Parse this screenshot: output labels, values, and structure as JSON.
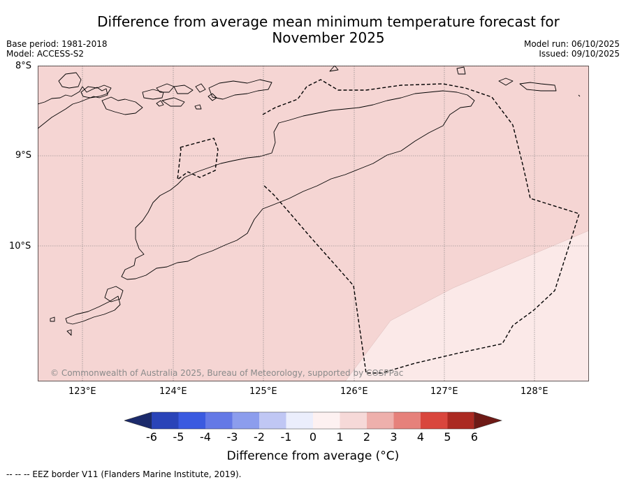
{
  "title": "Difference from average mean minimum temperature forecast for November 2025",
  "meta": {
    "base_period": "Base period: 1981-2018",
    "model": "Model: ACCESS-S2",
    "model_run": "Model run: 06/10/2025",
    "issued": "Issued: 09/10/2025"
  },
  "map": {
    "lat_labels": [
      "8°S",
      "9°S",
      "10°S"
    ],
    "lon_labels": [
      "123°E",
      "124°E",
      "125°E",
      "126°E",
      "127°E",
      "128°E"
    ],
    "copyright": "© Commonwealth of Australia 2025, Bureau of Meteorology, supported by COSPPac",
    "fill_colors": {
      "zone_1_2": "#f5d5d3",
      "zone_0_1": "#fbe9e8"
    }
  },
  "colorbar": {
    "ticks": [
      "-6",
      "-5",
      "-4",
      "-3",
      "-2",
      "-1",
      "0",
      "1",
      "2",
      "3",
      "4",
      "5",
      "6"
    ],
    "colors": [
      "#1b2a6b",
      "#2a44b8",
      "#3a5ae0",
      "#6479e6",
      "#8c9ded",
      "#c0c7f4",
      "#ebeefc",
      "#fdf1f1",
      "#f6d9d8",
      "#eeb0ac",
      "#e6817b",
      "#d9463d",
      "#ab2a22",
      "#6e1a16"
    ],
    "label": "Difference from average (°C)"
  },
  "footnote": "--  --  -- EEZ border V11 (Flanders Marine Institute, 2019)."
}
